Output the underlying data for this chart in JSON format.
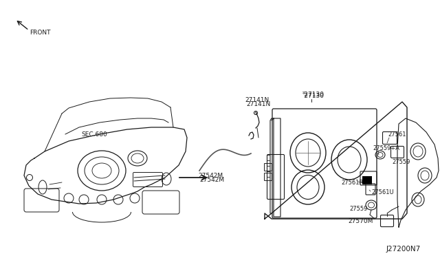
{
  "bg_color": "#ffffff",
  "line_color": "#1a1a1a",
  "fig_width": 6.4,
  "fig_height": 3.72,
  "dpi": 100,
  "labels": {
    "front": "FRONT",
    "sec680": "SEC.680",
    "part_27542M": "27542M",
    "part_27141N": "27141N",
    "part_27130": "‶27130",
    "part_27561": "27561",
    "part_27559A": "27559+A",
    "part_27559_top": "27559",
    "part_27561R": "27561R",
    "part_27561U": "27561U",
    "part_27559_bot": "27559",
    "part_27570M": "27570M",
    "diagram_id": "J27200N7"
  }
}
